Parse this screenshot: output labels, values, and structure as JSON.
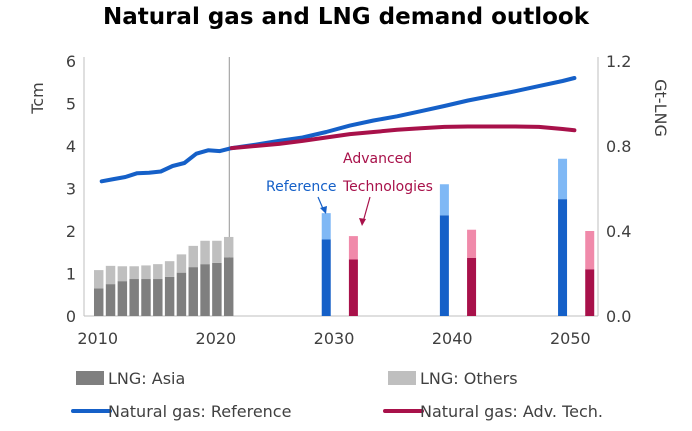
{
  "chart_data": {
    "type": "bar+line",
    "title": "Natural gas and LNG demand outlook",
    "left_axis": {
      "label": "Tcm",
      "ylim": [
        0,
        6
      ],
      "ticks": [
        "0",
        "1",
        "2",
        "3",
        "4",
        "5",
        "6"
      ]
    },
    "right_axis": {
      "label": "Gt-LNG",
      "ylim": [
        0,
        1.2
      ],
      "ticks": [
        "0.0",
        "0.4",
        "0.8",
        "1.2"
      ]
    },
    "x_axis": {
      "xlim": [
        2008.5,
        2052
      ],
      "ticks": [
        "2010",
        "2020",
        "2030",
        "2040",
        "2050"
      ]
    },
    "historical_split_year": 2020.8,
    "lng_history": {
      "years": [
        2010,
        2011,
        2012,
        2013,
        2014,
        2015,
        2016,
        2017,
        2018,
        2019,
        2020,
        2021
      ],
      "asia": [
        0.65,
        0.75,
        0.82,
        0.87,
        0.87,
        0.87,
        0.92,
        1.02,
        1.15,
        1.22,
        1.25,
        1.38
      ],
      "others": [
        0.43,
        0.43,
        0.35,
        0.3,
        0.32,
        0.35,
        0.37,
        0.43,
        0.5,
        0.55,
        0.52,
        0.48
      ]
    },
    "lng_projection": [
      {
        "year": 2029,
        "scenario": "Reference",
        "asia": 1.8,
        "others": 0.62
      },
      {
        "year": 2031.3,
        "scenario": "Advanced Technologies",
        "asia": 1.33,
        "others": 0.55
      },
      {
        "year": 2039,
        "scenario": "Reference",
        "asia": 2.37,
        "others": 0.73
      },
      {
        "year": 2041.3,
        "scenario": "Advanced Technologies",
        "asia": 1.37,
        "others": 0.66
      },
      {
        "year": 2049,
        "scenario": "Reference",
        "asia": 2.75,
        "others": 0.95
      },
      {
        "year": 2051.3,
        "scenario": "Advanced Technologies",
        "asia": 1.1,
        "others": 0.9
      }
    ],
    "series": [
      {
        "name": "Natural gas: Reference",
        "color": "#1560c8",
        "x": [
          2010,
          2011,
          2012,
          2013,
          2014,
          2015,
          2016,
          2017,
          2018,
          2019,
          2020,
          2021,
          2023,
          2025,
          2027,
          2029,
          2031,
          2033,
          2035,
          2037,
          2039,
          2041,
          2043,
          2045,
          2047,
          2049,
          2050
        ],
        "y": [
          3.17,
          3.22,
          3.27,
          3.36,
          3.37,
          3.4,
          3.53,
          3.6,
          3.82,
          3.9,
          3.88,
          3.95,
          4.03,
          4.12,
          4.2,
          4.33,
          4.48,
          4.6,
          4.7,
          4.82,
          4.94,
          5.07,
          5.18,
          5.29,
          5.41,
          5.53,
          5.6
        ]
      },
      {
        "name": "Natural gas: Adv. Tech.",
        "color": "#a8114a",
        "x": [
          2021,
          2023,
          2025,
          2027,
          2029,
          2031,
          2033,
          2035,
          2037,
          2039,
          2041,
          2043,
          2045,
          2047,
          2049,
          2050
        ],
        "y": [
          3.95,
          4.0,
          4.05,
          4.12,
          4.2,
          4.28,
          4.33,
          4.38,
          4.42,
          4.45,
          4.46,
          4.46,
          4.46,
          4.45,
          4.4,
          4.37
        ]
      }
    ],
    "bar_colors": {
      "lng_asia_history": "#7f7f7f",
      "lng_others_history": "#bfbfbf",
      "reference_asia": "#1560c8",
      "reference_others": "#7fb8f5",
      "advtech_asia": "#a8114a",
      "advtech_others": "#f08aaa"
    },
    "annotations": {
      "reference": "Reference",
      "adv_line1": "Advanced",
      "adv_line2": "Technologies"
    },
    "legend": [
      {
        "label": "LNG: Asia",
        "color": "#7f7f7f",
        "shape": "box"
      },
      {
        "label": "LNG: Others",
        "color": "#bfbfbf",
        "shape": "box"
      },
      {
        "label": "Natural gas: Reference",
        "color": "#1560c8",
        "shape": "line"
      },
      {
        "label": "Natural gas: Adv. Tech.",
        "color": "#a8114a",
        "shape": "line"
      }
    ],
    "legend_placement": "bottom",
    "grid": false
  }
}
